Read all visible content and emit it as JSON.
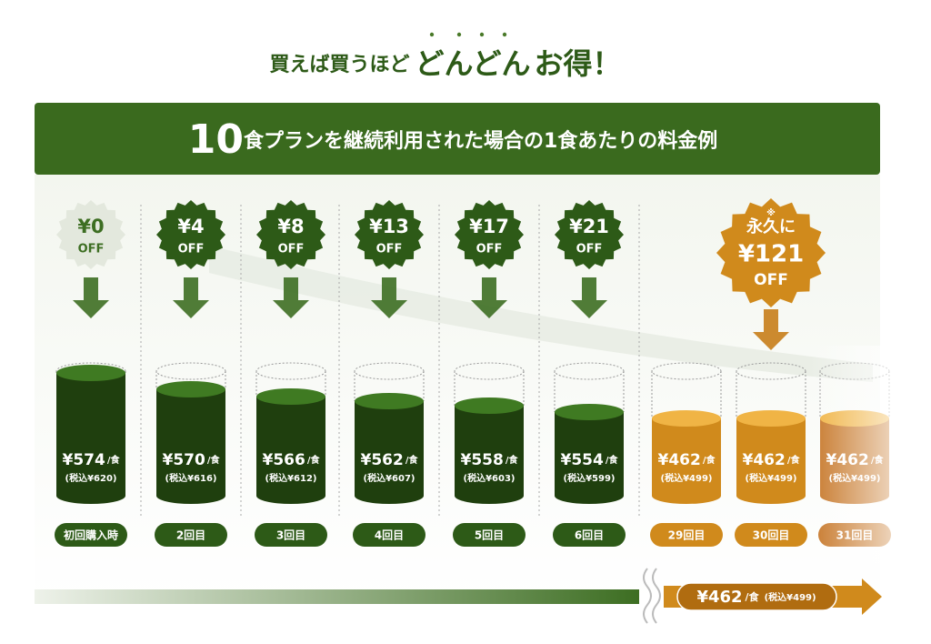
{
  "header": {
    "title_a": "買えば買うほど",
    "title_b": "どんどん",
    "title_c": "お得！"
  },
  "banner": {
    "number": "10",
    "text": "食プランを継続利用された場合の1食あたりの料金例"
  },
  "columns": [
    {
      "amount": "¥0",
      "off": "OFF",
      "price": "¥574",
      "per": "/食",
      "tax": "(税込¥620)",
      "label": "初回購入時",
      "color": "#2d5a17"
    },
    {
      "amount": "¥4",
      "off": "OFF",
      "price": "¥570",
      "per": "/食",
      "tax": "(税込¥616)",
      "label": "2回目",
      "color": "#2d5a17"
    },
    {
      "amount": "¥8",
      "off": "OFF",
      "price": "¥566",
      "per": "/食",
      "tax": "(税込¥612)",
      "label": "3回目",
      "color": "#2d5a17"
    },
    {
      "amount": "¥13",
      "off": "OFF",
      "price": "¥562",
      "per": "/食",
      "tax": "(税込¥607)",
      "label": "4回目",
      "color": "#2d5a17"
    },
    {
      "amount": "¥17",
      "off": "OFF",
      "price": "¥558",
      "per": "/食",
      "tax": "(税込¥603)",
      "label": "5回目",
      "color": "#2d5a17"
    },
    {
      "amount": "¥21",
      "off": "OFF",
      "price": "¥554",
      "per": "/食",
      "tax": "(税込¥599)",
      "label": "6回目",
      "color": "#2d5a17"
    },
    {
      "price": "¥462",
      "per": "/食",
      "tax": "(税込¥499)",
      "label": "29回目",
      "color": "#d08a1c"
    },
    {
      "prefix": "永久に",
      "note": "※",
      "amount": "¥121",
      "off": "OFF",
      "price": "¥462",
      "per": "/食",
      "tax": "(税込¥499)",
      "label": "30回目",
      "color": "#d08a1c"
    },
    {
      "price": "¥462",
      "per": "/食",
      "tax": "(税込¥499)",
      "label": "31回目",
      "color": "#c7782a"
    }
  ],
  "footer": {
    "price": "¥462",
    "per": "/食",
    "tax": "(税込¥499)"
  }
}
